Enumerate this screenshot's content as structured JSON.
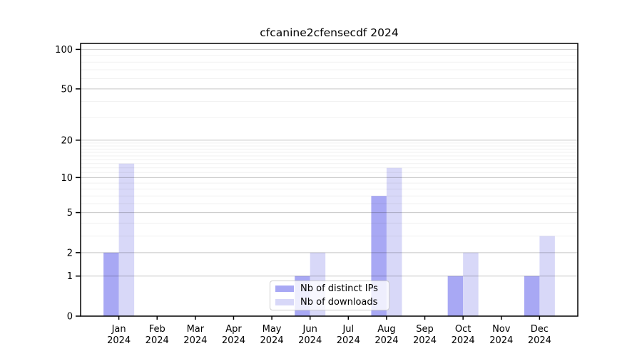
{
  "chart_data": {
    "type": "bar",
    "title": "cfcanine2cfensecdf 2024",
    "categories": [
      "Jan",
      "Feb",
      "Mar",
      "Apr",
      "May",
      "Jun",
      "Jul",
      "Aug",
      "Sep",
      "Oct",
      "Nov",
      "Dec"
    ],
    "year_label": "2024",
    "series": [
      {
        "name": "Nb of distinct IPs",
        "color": "#a8a8f4",
        "values": [
          2,
          0,
          0,
          0,
          0,
          1,
          0,
          7,
          0,
          1,
          0,
          1
        ]
      },
      {
        "name": "Nb of downloads",
        "color": "#d8d8f8",
        "values": [
          13,
          0,
          0,
          0,
          0,
          2,
          0,
          12,
          0,
          2,
          0,
          3
        ]
      }
    ],
    "y_axis": {
      "scale": "log10(1+v)",
      "ticks": [
        0,
        1,
        2,
        5,
        10,
        20,
        50,
        100
      ],
      "minor_ticks": [
        3,
        4,
        6,
        7,
        8,
        9,
        11,
        12,
        13,
        14,
        15,
        16,
        17,
        18,
        19,
        30,
        40,
        60,
        70,
        80,
        90
      ],
      "ylim": [
        0,
        111
      ]
    },
    "legend_position": "lower center",
    "grid": "on",
    "xlabel": "",
    "ylabel": ""
  }
}
